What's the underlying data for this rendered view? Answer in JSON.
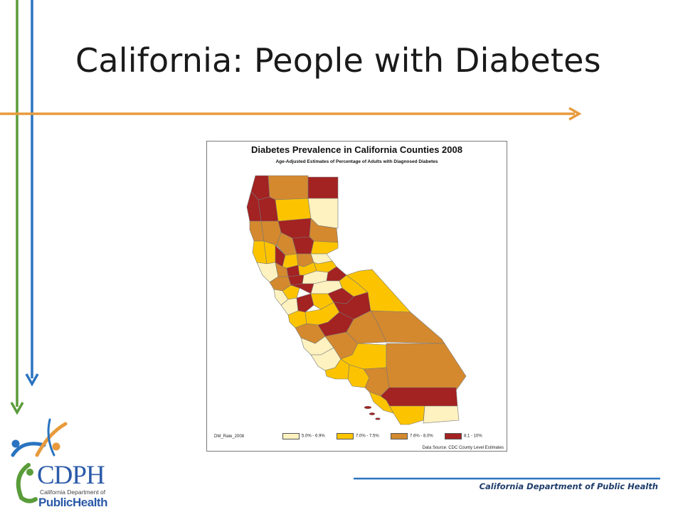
{
  "slide": {
    "title": "California: People with Diabetes",
    "footer": "California Department  of Public Health"
  },
  "logo": {
    "acronym": "CDPH",
    "line1": "California Department of",
    "line2": "PublicHealth"
  },
  "map": {
    "title": "Diabetes Prevalence in California Counties 2008",
    "subtitle": "Age-Adjusted Estimates of Percentage of Adults with Diagnosed Diabetes",
    "data_source": "Data Source: CDC County Level Estimates",
    "legend": {
      "title": "DM_Rate_2008",
      "classes": [
        {
          "label": "5.0% - 6.9%",
          "color": "#fdf2c0"
        },
        {
          "label": "7.0% - 7.5%",
          "color": "#fcc400"
        },
        {
          "label": "7.6% - 8.0%",
          "color": "#d4892e"
        },
        {
          "label": "8.1 - 10%",
          "color": "#a32222"
        }
      ]
    }
  },
  "colors": {
    "green_line": "#5a9c3a",
    "blue_line": "#2a74c0",
    "orange_line": "#e89a3c",
    "footer_line": "#2a74c0",
    "class_low": "#fdf2c0",
    "class_mid": "#fcc400",
    "class_high": "#d4892e",
    "class_top": "#a32222"
  }
}
